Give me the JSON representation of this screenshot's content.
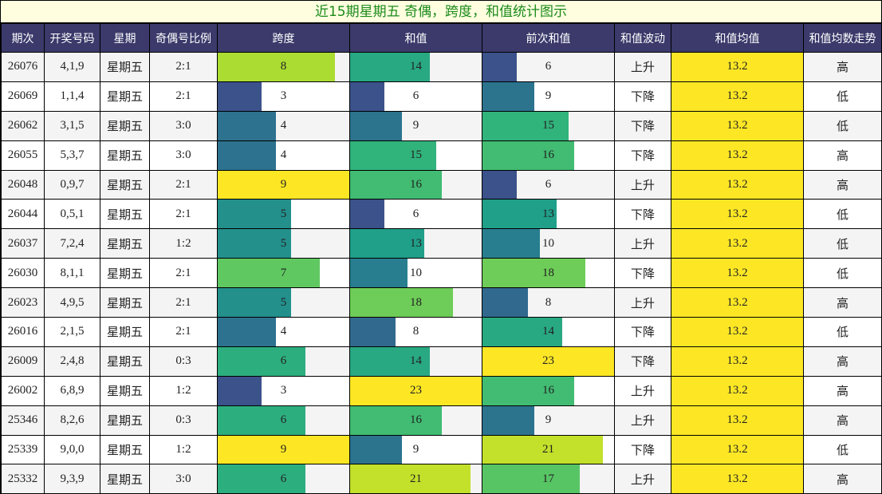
{
  "title": "近15期星期五 奇偶，跨度，和值统计图示",
  "headers": [
    "期次",
    "开奖号码",
    "星期",
    "奇偶号比例",
    "跨度",
    "和值",
    "前次和值",
    "和值波动",
    "和值均值",
    "和值均数走势"
  ],
  "rows": [
    {
      "issue": "26076",
      "numbers": "4,1,9",
      "weekday": "星期五",
      "ratio": "2:1",
      "span": 8,
      "sum": 14,
      "prev_sum": 6,
      "wave": "上升",
      "avg": "13.2",
      "trend": "高"
    },
    {
      "issue": "26069",
      "numbers": "1,1,4",
      "weekday": "星期五",
      "ratio": "2:1",
      "span": 3,
      "sum": 6,
      "prev_sum": 9,
      "wave": "下降",
      "avg": "13.2",
      "trend": "低"
    },
    {
      "issue": "26062",
      "numbers": "3,1,5",
      "weekday": "星期五",
      "ratio": "3:0",
      "span": 4,
      "sum": 9,
      "prev_sum": 15,
      "wave": "下降",
      "avg": "13.2",
      "trend": "低"
    },
    {
      "issue": "26055",
      "numbers": "5,3,7",
      "weekday": "星期五",
      "ratio": "3:0",
      "span": 4,
      "sum": 15,
      "prev_sum": 16,
      "wave": "下降",
      "avg": "13.2",
      "trend": "高"
    },
    {
      "issue": "26048",
      "numbers": "0,9,7",
      "weekday": "星期五",
      "ratio": "2:1",
      "span": 9,
      "sum": 16,
      "prev_sum": 6,
      "wave": "上升",
      "avg": "13.2",
      "trend": "高"
    },
    {
      "issue": "26044",
      "numbers": "0,5,1",
      "weekday": "星期五",
      "ratio": "2:1",
      "span": 5,
      "sum": 6,
      "prev_sum": 13,
      "wave": "下降",
      "avg": "13.2",
      "trend": "低"
    },
    {
      "issue": "26037",
      "numbers": "7,2,4",
      "weekday": "星期五",
      "ratio": "1:2",
      "span": 5,
      "sum": 13,
      "prev_sum": 10,
      "wave": "上升",
      "avg": "13.2",
      "trend": "低"
    },
    {
      "issue": "26030",
      "numbers": "8,1,1",
      "weekday": "星期五",
      "ratio": "2:1",
      "span": 7,
      "sum": 10,
      "prev_sum": 18,
      "wave": "下降",
      "avg": "13.2",
      "trend": "低"
    },
    {
      "issue": "26023",
      "numbers": "4,9,5",
      "weekday": "星期五",
      "ratio": "2:1",
      "span": 5,
      "sum": 18,
      "prev_sum": 8,
      "wave": "上升",
      "avg": "13.2",
      "trend": "高"
    },
    {
      "issue": "26016",
      "numbers": "2,1,5",
      "weekday": "星期五",
      "ratio": "2:1",
      "span": 4,
      "sum": 8,
      "prev_sum": 14,
      "wave": "下降",
      "avg": "13.2",
      "trend": "低"
    },
    {
      "issue": "26009",
      "numbers": "2,4,8",
      "weekday": "星期五",
      "ratio": "0:3",
      "span": 6,
      "sum": 14,
      "prev_sum": 23,
      "wave": "下降",
      "avg": "13.2",
      "trend": "高"
    },
    {
      "issue": "26002",
      "numbers": "6,8,9",
      "weekday": "星期五",
      "ratio": "1:2",
      "span": 3,
      "sum": 23,
      "prev_sum": 16,
      "wave": "上升",
      "avg": "13.2",
      "trend": "高"
    },
    {
      "issue": "25346",
      "numbers": "8,2,6",
      "weekday": "星期五",
      "ratio": "0:3",
      "span": 6,
      "sum": 16,
      "prev_sum": 9,
      "wave": "上升",
      "avg": "13.2",
      "trend": "高"
    },
    {
      "issue": "25339",
      "numbers": "9,0,0",
      "weekday": "星期五",
      "ratio": "1:2",
      "span": 9,
      "sum": 9,
      "prev_sum": 21,
      "wave": "下降",
      "avg": "13.2",
      "trend": "低"
    },
    {
      "issue": "25332",
      "numbers": "9,3,9",
      "weekday": "星期五",
      "ratio": "3:0",
      "span": 6,
      "sum": 21,
      "prev_sum": 17,
      "wave": "上升",
      "avg": "13.2",
      "trend": "高"
    }
  ],
  "colors": {
    "header_bg": "#3b3a6b",
    "title_bg": "#ffffe0",
    "title_text": "#1a8a1a",
    "avg_bg": "#fde725"
  },
  "chart_data": {
    "type": "table",
    "title": "近15期星期五 奇偶，跨度，和值统计图示",
    "categories": [
      "26076",
      "26069",
      "26062",
      "26055",
      "26048",
      "26044",
      "26037",
      "26030",
      "26023",
      "26016",
      "26009",
      "26002",
      "25346",
      "25339",
      "25332"
    ],
    "series": [
      {
        "name": "跨度",
        "values": [
          8,
          3,
          4,
          4,
          9,
          5,
          5,
          7,
          5,
          4,
          6,
          3,
          6,
          9,
          6
        ]
      },
      {
        "name": "和值",
        "values": [
          14,
          6,
          9,
          15,
          16,
          6,
          13,
          10,
          18,
          8,
          14,
          23,
          16,
          9,
          21
        ]
      },
      {
        "name": "前次和值",
        "values": [
          6,
          9,
          15,
          16,
          6,
          13,
          10,
          18,
          8,
          14,
          23,
          16,
          9,
          21,
          17
        ]
      },
      {
        "name": "和值均值",
        "values": [
          13.2,
          13.2,
          13.2,
          13.2,
          13.2,
          13.2,
          13.2,
          13.2,
          13.2,
          13.2,
          13.2,
          13.2,
          13.2,
          13.2,
          13.2
        ]
      }
    ],
    "span_max": 9,
    "sum_max": 23
  }
}
